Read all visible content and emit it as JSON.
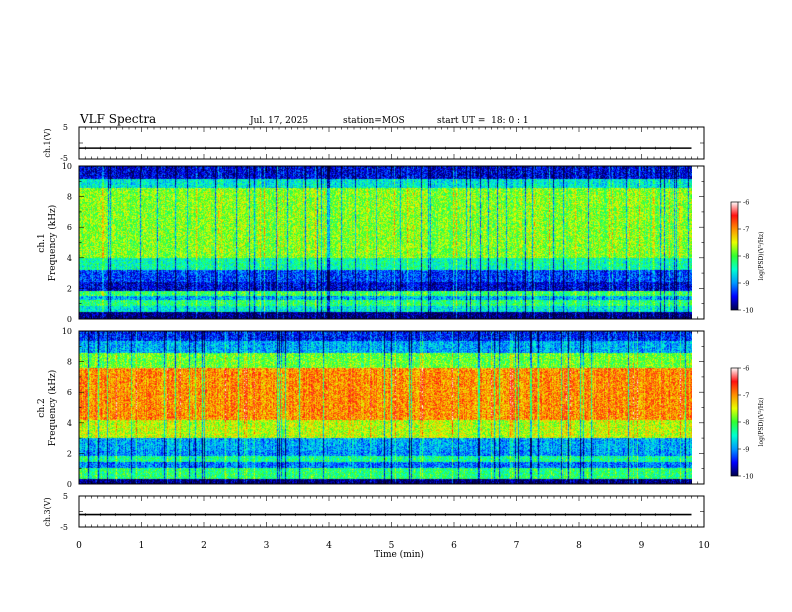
{
  "header": {
    "title": "VLF Spectra",
    "date": "Jul. 17, 2025",
    "station": "station=MOS",
    "start": "start UT =  18: 0 : 1"
  },
  "colors": {
    "colormap": [
      "#00004a",
      "#0000ff",
      "#0098ff",
      "#00ffd0",
      "#30ff30",
      "#e8ff00",
      "#ff9000",
      "#ff1010",
      "#ffffff"
    ]
  },
  "chart_data": [
    {
      "type": "line",
      "name": "ch1-waveform",
      "ylabel": "ch.1(V)",
      "ylim": [
        -5,
        5
      ],
      "y_ticks": [
        "5",
        "-5"
      ],
      "x": [
        0,
        9.8
      ],
      "y": [
        -1.6,
        -1.6
      ]
    },
    {
      "type": "heatmap",
      "name": "ch1-spectrogram",
      "ylabel": "ch.1\nFrequency (kHz)",
      "ylim": [
        0,
        10
      ],
      "y_ticks": [
        "0",
        "2",
        "4",
        "6",
        "8",
        "10"
      ],
      "xlim": [
        0,
        9.8
      ],
      "colorbar": {
        "label": "log(PSD)(V²/Hz)",
        "range": [
          -10,
          -6
        ],
        "ticks": [
          "-6",
          "-7",
          "-8",
          "-9",
          "-10"
        ]
      },
      "band_profile": [
        {
          "f": [
            0,
            0.4
          ],
          "level": -9.9
        },
        {
          "f": [
            0.4,
            0.8
          ],
          "level": -8.6
        },
        {
          "f": [
            0.8,
            1.2
          ],
          "level": -8.2
        },
        {
          "f": [
            1.2,
            1.5
          ],
          "level": -8.9
        },
        {
          "f": [
            1.5,
            1.8
          ],
          "level": -8.1
        },
        {
          "f": [
            1.8,
            2.4
          ],
          "level": -9.6
        },
        {
          "f": [
            2.4,
            3.2
          ],
          "level": -9.3
        },
        {
          "f": [
            3.2,
            4.0
          ],
          "level": -8.4
        },
        {
          "f": [
            4.0,
            8.6
          ],
          "level": -7.8
        },
        {
          "f": [
            8.6,
            9.2
          ],
          "level": -8.6
        },
        {
          "f": [
            9.2,
            10
          ],
          "level": -9.6
        }
      ]
    },
    {
      "type": "heatmap",
      "name": "ch2-spectrogram",
      "ylabel": "ch.2\nFrequency (kHz)",
      "ylim": [
        0,
        10
      ],
      "y_ticks": [
        "0",
        "2",
        "4",
        "6",
        "8",
        "10"
      ],
      "xlim": [
        0,
        9.8
      ],
      "colorbar": {
        "label": "log(PSD)(V²/Hz)",
        "range": [
          -10,
          -6
        ],
        "ticks": [
          "-6",
          "-7",
          "-8",
          "-9",
          "-10"
        ]
      },
      "band_profile": [
        {
          "f": [
            0,
            0.3
          ],
          "level": -9.9
        },
        {
          "f": [
            0.3,
            1.0
          ],
          "level": -8.2
        },
        {
          "f": [
            1.0,
            1.4
          ],
          "level": -9.1
        },
        {
          "f": [
            1.4,
            1.8
          ],
          "level": -8.3
        },
        {
          "f": [
            1.8,
            2.2
          ],
          "level": -9.0
        },
        {
          "f": [
            2.2,
            3.0
          ],
          "level": -8.9
        },
        {
          "f": [
            3.0,
            4.2
          ],
          "level": -7.6
        },
        {
          "f": [
            4.2,
            7.6
          ],
          "level": -7.0
        },
        {
          "f": [
            7.6,
            8.6
          ],
          "level": -7.9
        },
        {
          "f": [
            8.6,
            9.4
          ],
          "level": -8.9
        },
        {
          "f": [
            9.4,
            10
          ],
          "level": -9.4
        }
      ]
    },
    {
      "type": "line",
      "name": "ch3-waveform",
      "ylabel": "ch.3(V)",
      "ylim": [
        -5,
        5
      ],
      "y_ticks": [
        "5",
        "-5"
      ],
      "x": [
        0,
        9.8
      ],
      "y": [
        -1.0,
        -1.0
      ]
    }
  ],
  "x_axis": {
    "xlabel": "Time (min)",
    "xlim": [
      0,
      10
    ],
    "ticks": [
      "0",
      "1",
      "2",
      "3",
      "4",
      "5",
      "6",
      "7",
      "8",
      "9",
      "10"
    ]
  }
}
